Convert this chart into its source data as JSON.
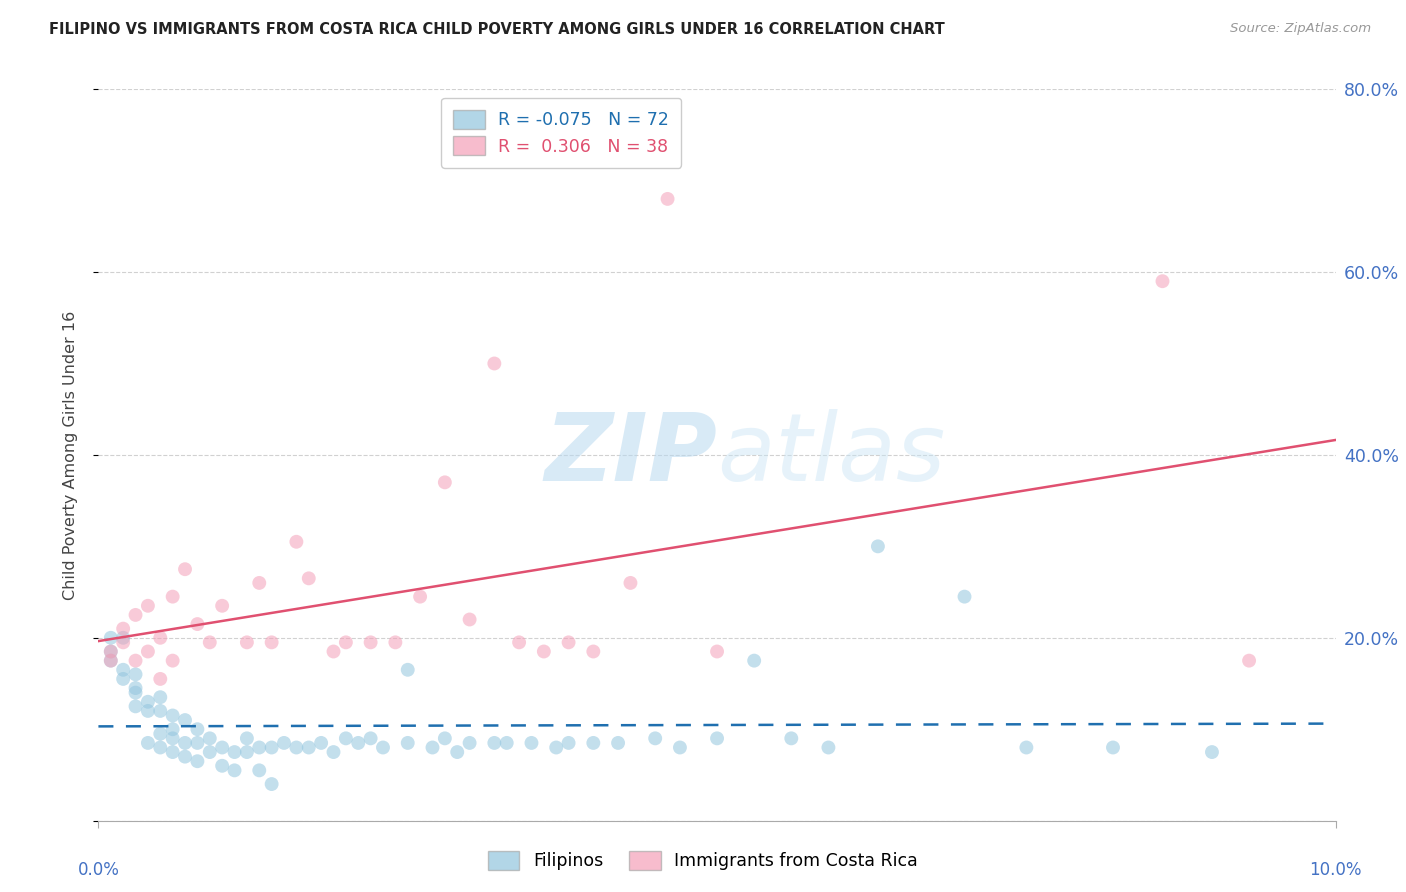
{
  "title": "FILIPINO VS IMMIGRANTS FROM COSTA RICA CHILD POVERTY AMONG GIRLS UNDER 16 CORRELATION CHART",
  "source": "Source: ZipAtlas.com",
  "ylabel": "Child Poverty Among Girls Under 16",
  "xlim": [
    0.0,
    0.1
  ],
  "ylim": [
    0.0,
    0.8
  ],
  "yticks": [
    0.0,
    0.2,
    0.4,
    0.6,
    0.8
  ],
  "ytick_labels": [
    "",
    "20.0%",
    "40.0%",
    "60.0%",
    "80.0%"
  ],
  "legend_r1": "R = -0.075",
  "legend_n1": "N = 72",
  "legend_r2": "R =  0.306",
  "legend_n2": "N = 38",
  "color_filipino": "#92c5de",
  "color_costarica": "#f4a0b8",
  "color_trend_filipino": "#1f6faf",
  "color_trend_costarica": "#e05070",
  "color_axis_labels": "#4472c4",
  "watermark_zip": "ZIP",
  "watermark_atlas": "atlas",
  "filipinos_x": [
    0.001,
    0.001,
    0.001,
    0.002,
    0.002,
    0.002,
    0.003,
    0.003,
    0.003,
    0.003,
    0.004,
    0.004,
    0.004,
    0.005,
    0.005,
    0.005,
    0.005,
    0.006,
    0.006,
    0.006,
    0.006,
    0.007,
    0.007,
    0.007,
    0.008,
    0.008,
    0.008,
    0.009,
    0.009,
    0.01,
    0.01,
    0.011,
    0.011,
    0.012,
    0.012,
    0.013,
    0.013,
    0.014,
    0.014,
    0.015,
    0.016,
    0.017,
    0.018,
    0.019,
    0.02,
    0.021,
    0.022,
    0.023,
    0.025,
    0.025,
    0.027,
    0.028,
    0.029,
    0.03,
    0.032,
    0.033,
    0.035,
    0.037,
    0.038,
    0.04,
    0.042,
    0.045,
    0.047,
    0.05,
    0.053,
    0.056,
    0.059,
    0.063,
    0.07,
    0.075,
    0.082,
    0.09
  ],
  "filipinos_y": [
    0.175,
    0.185,
    0.2,
    0.165,
    0.155,
    0.2,
    0.16,
    0.14,
    0.125,
    0.145,
    0.13,
    0.12,
    0.085,
    0.135,
    0.12,
    0.095,
    0.08,
    0.115,
    0.1,
    0.09,
    0.075,
    0.11,
    0.085,
    0.07,
    0.1,
    0.085,
    0.065,
    0.09,
    0.075,
    0.08,
    0.06,
    0.075,
    0.055,
    0.09,
    0.075,
    0.08,
    0.055,
    0.08,
    0.04,
    0.085,
    0.08,
    0.08,
    0.085,
    0.075,
    0.09,
    0.085,
    0.09,
    0.08,
    0.085,
    0.165,
    0.08,
    0.09,
    0.075,
    0.085,
    0.085,
    0.085,
    0.085,
    0.08,
    0.085,
    0.085,
    0.085,
    0.09,
    0.08,
    0.09,
    0.175,
    0.09,
    0.08,
    0.3,
    0.245,
    0.08,
    0.08,
    0.075
  ],
  "costarica_x": [
    0.001,
    0.001,
    0.002,
    0.002,
    0.003,
    0.003,
    0.004,
    0.004,
    0.005,
    0.005,
    0.006,
    0.006,
    0.007,
    0.008,
    0.009,
    0.01,
    0.012,
    0.013,
    0.014,
    0.016,
    0.017,
    0.019,
    0.02,
    0.022,
    0.024,
    0.026,
    0.028,
    0.03,
    0.032,
    0.034,
    0.036,
    0.038,
    0.04,
    0.043,
    0.046,
    0.05,
    0.086,
    0.093
  ],
  "costarica_y": [
    0.185,
    0.175,
    0.195,
    0.21,
    0.225,
    0.175,
    0.235,
    0.185,
    0.2,
    0.155,
    0.175,
    0.245,
    0.275,
    0.215,
    0.195,
    0.235,
    0.195,
    0.26,
    0.195,
    0.305,
    0.265,
    0.185,
    0.195,
    0.195,
    0.195,
    0.245,
    0.37,
    0.22,
    0.5,
    0.195,
    0.185,
    0.195,
    0.185,
    0.26,
    0.68,
    0.185,
    0.59,
    0.175
  ]
}
